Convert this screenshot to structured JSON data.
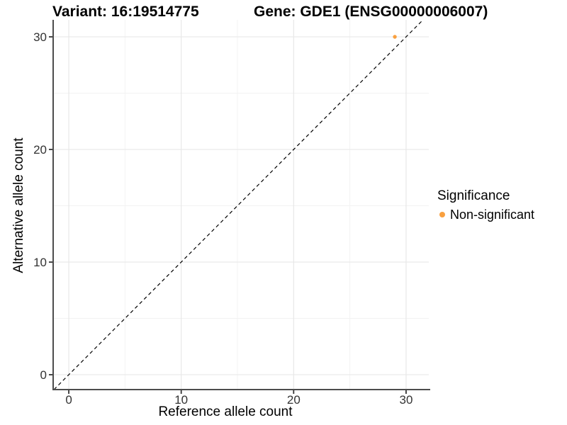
{
  "chart_data": {
    "type": "scatter",
    "title_left": "Variant: 16:19514775",
    "title_right": "Gene: GDE1 (ENSG00000006007)",
    "xlabel": "Reference allele count",
    "ylabel": "Alternative allele count",
    "legend_title": "Significance",
    "legend_position": "right",
    "grid": true,
    "x_ticks": [
      0,
      10,
      20,
      30
    ],
    "y_ticks": [
      0,
      10,
      20,
      30
    ],
    "x_minor_ticks": [
      5,
      15,
      25
    ],
    "y_minor_ticks": [
      5,
      15,
      25
    ],
    "xlim": [
      -1.39,
      32.02
    ],
    "ylim": [
      -1.32,
      31.51
    ],
    "series": [
      {
        "name": "Non-significant",
        "color": "#F9A03F",
        "points": [
          {
            "x": 29,
            "y": 30
          }
        ]
      }
    ],
    "reference_line": {
      "equation": "y = x",
      "style": "dashed",
      "color": "#000000"
    }
  },
  "colors": {
    "background": "#FFFFFF",
    "axis_line": "#4D4D4D",
    "tick_mark": "#333333",
    "tick_label": "#333333",
    "grid_major": "#E6E6E6",
    "grid_minor": "#F2F2F2",
    "point_orange": "#F9A03F",
    "reference_line": "#000000"
  }
}
